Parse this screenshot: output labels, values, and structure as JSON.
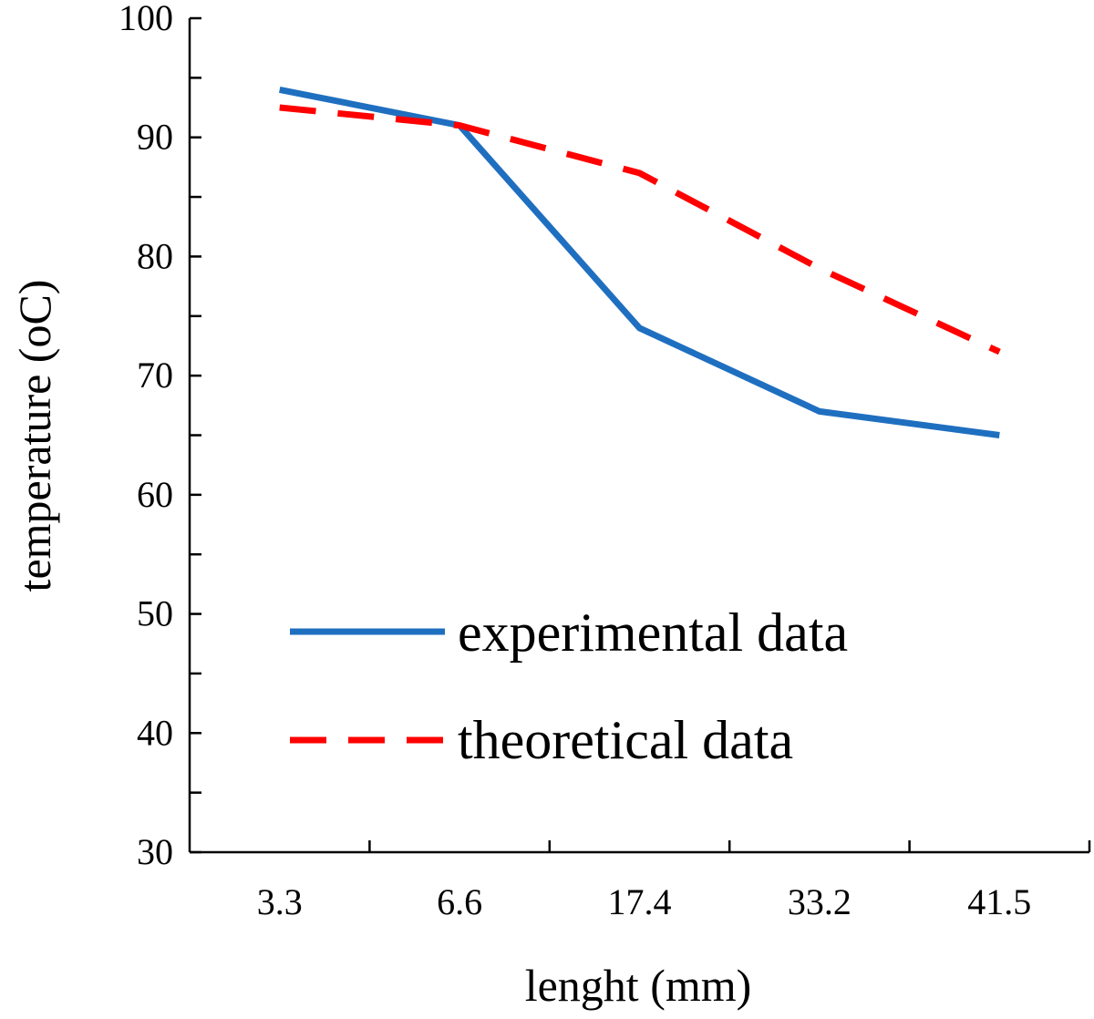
{
  "chart_data": {
    "type": "line",
    "title": "",
    "xlabel": "lenght (mm)",
    "ylabel": "temperature (oC)",
    "categories": [
      "3.3",
      "6.6",
      "17.4",
      "33.2",
      "41.5"
    ],
    "ylim": [
      30,
      100
    ],
    "yticks": [
      "30",
      "40",
      "50",
      "60",
      "70",
      "80",
      "90",
      "100"
    ],
    "grid": false,
    "legend_position": "bottom-center",
    "series": [
      {
        "name": "experimental data",
        "values": [
          94,
          91,
          74,
          67,
          65
        ],
        "color": "#1f6fc0",
        "style": "solid"
      },
      {
        "name": "theoretical data",
        "values": [
          92.5,
          91,
          87,
          79,
          72
        ],
        "color": "#ff0000",
        "style": "dashed"
      }
    ]
  }
}
